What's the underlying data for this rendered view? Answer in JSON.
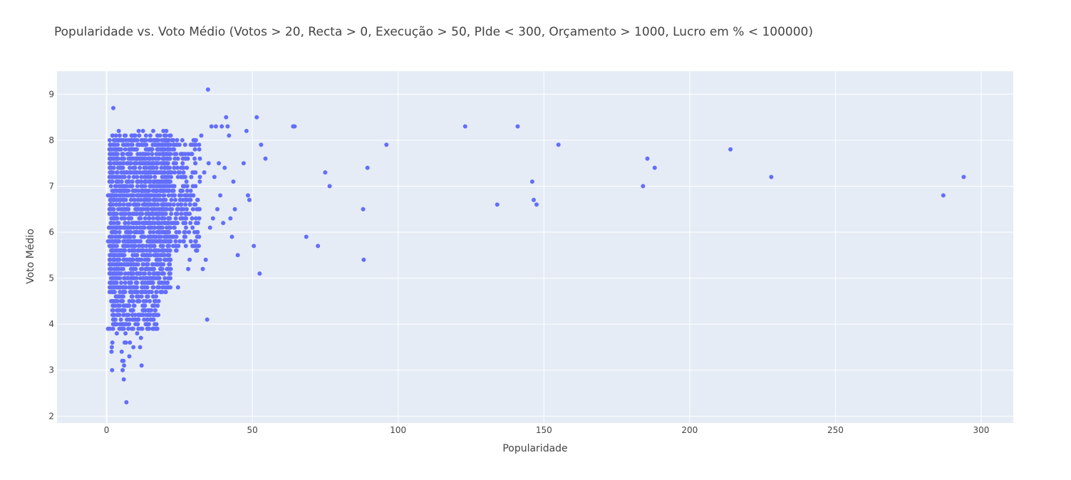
{
  "chart_data": {
    "type": "scatter",
    "title": "Popularidade vs. Voto Médio (Votos > 20, Recta > 0, Execução > 50, PIde < 300, Orçamento > 1000, Lucro em % < 100000)",
    "xlabel": "Popularidade",
    "ylabel": "Voto Médio",
    "xlim": [
      -17,
      311
    ],
    "ylim": [
      1.85,
      9.5
    ],
    "xticks": [
      0,
      50,
      100,
      150,
      200,
      250,
      300
    ],
    "yticks": [
      2,
      3,
      4,
      5,
      6,
      7,
      8,
      9
    ],
    "grid": true,
    "legend": "none",
    "colors": {
      "marker": "#636efa",
      "plot_bg": "#e5ecf6",
      "grid": "#ffffff",
      "text": "#444444"
    },
    "series": [
      {
        "points": [
          [
            0.5,
            3.9
          ],
          [
            1.2,
            3.9
          ],
          [
            0.5,
            5.8
          ],
          [
            0.5,
            6.8
          ],
          [
            0.8,
            6.1
          ],
          [
            1.0,
            7.1
          ],
          [
            1.3,
            6.5
          ],
          [
            1.5,
            4.7
          ],
          [
            1.6,
            4.5
          ],
          [
            1.7,
            3.4
          ],
          [
            1.8,
            3.5
          ],
          [
            1.9,
            3.0
          ],
          [
            2.0,
            3.6
          ],
          [
            2.0,
            4.3
          ],
          [
            2.0,
            8.1
          ],
          [
            2.2,
            5.3
          ],
          [
            2.3,
            8.7
          ],
          [
            2.5,
            8.0
          ],
          [
            2.8,
            4.1
          ],
          [
            3.2,
            4.6
          ],
          [
            3.5,
            3.8
          ],
          [
            3.7,
            4.2
          ],
          [
            3.8,
            7.9
          ],
          [
            4.0,
            4.4
          ],
          [
            4.2,
            8.2
          ],
          [
            4.5,
            8.1
          ],
          [
            4.8,
            4.0
          ],
          [
            5.0,
            8.0
          ],
          [
            5.2,
            3.4
          ],
          [
            5.4,
            3.2
          ],
          [
            5.5,
            3.0
          ],
          [
            5.6,
            3.9
          ],
          [
            5.8,
            3.2
          ],
          [
            5.9,
            2.8
          ],
          [
            6.0,
            3.1
          ],
          [
            6.2,
            3.6
          ],
          [
            6.5,
            3.8
          ],
          [
            6.6,
            3.6
          ],
          [
            6.8,
            2.3
          ],
          [
            7.0,
            4.0
          ],
          [
            7.5,
            3.9
          ],
          [
            7.8,
            3.3
          ],
          [
            8.0,
            3.6
          ],
          [
            8.5,
            8.0
          ],
          [
            9.0,
            4.1
          ],
          [
            9.2,
            3.5
          ],
          [
            9.8,
            8.1
          ],
          [
            10.5,
            3.8
          ],
          [
            11.0,
            8.2
          ],
          [
            11.2,
            8.1
          ],
          [
            11.5,
            3.5
          ],
          [
            11.8,
            3.7
          ],
          [
            12.0,
            3.1
          ],
          [
            12.2,
            3.9
          ],
          [
            12.5,
            8.2
          ],
          [
            13.5,
            4.2
          ],
          [
            14.0,
            4.1
          ],
          [
            15.0,
            8.1
          ],
          [
            16.0,
            8.2
          ],
          [
            16.5,
            4.2
          ],
          [
            17.0,
            4.2
          ],
          [
            17.5,
            4.4
          ],
          [
            18.0,
            4.9
          ],
          [
            19.0,
            4.7
          ],
          [
            19.5,
            8.2
          ],
          [
            20.0,
            5.6
          ],
          [
            20.5,
            8.2
          ],
          [
            21.0,
            5.2
          ],
          [
            21.5,
            7.1
          ],
          [
            22.0,
            5.2
          ],
          [
            22.5,
            8.0
          ],
          [
            23.0,
            7.8
          ],
          [
            24.0,
            5.6
          ],
          [
            24.5,
            4.8
          ],
          [
            25.0,
            7.9
          ],
          [
            25.5,
            6.9
          ],
          [
            26.0,
            8.0
          ],
          [
            26.5,
            5.8
          ],
          [
            27.0,
            7.6
          ],
          [
            27.5,
            6.5
          ],
          [
            28.0,
            5.2
          ],
          [
            28.5,
            5.4
          ],
          [
            29.0,
            7.7
          ],
          [
            29.5,
            7.3
          ],
          [
            30.0,
            8.0
          ],
          [
            30.5,
            6.6
          ],
          [
            31.0,
            5.6
          ],
          [
            31.5,
            6.5
          ],
          [
            32.0,
            7.6
          ],
          [
            32.5,
            8.1
          ],
          [
            33.0,
            5.2
          ],
          [
            33.5,
            7.3
          ],
          [
            34.0,
            5.4
          ],
          [
            34.5,
            4.1
          ],
          [
            34.8,
            9.1
          ],
          [
            35.0,
            7.5
          ],
          [
            35.5,
            6.1
          ],
          [
            36.0,
            8.3
          ],
          [
            36.5,
            6.3
          ],
          [
            37.0,
            7.2
          ],
          [
            37.5,
            8.3
          ],
          [
            38.0,
            6.5
          ],
          [
            38.5,
            7.5
          ],
          [
            39.0,
            6.8
          ],
          [
            39.5,
            8.3
          ],
          [
            40.0,
            6.2
          ],
          [
            40.5,
            7.4
          ],
          [
            41.0,
            8.5
          ],
          [
            41.5,
            8.3
          ],
          [
            42.0,
            8.1
          ],
          [
            42.5,
            6.3
          ],
          [
            43.0,
            5.9
          ],
          [
            43.5,
            7.1
          ],
          [
            44.0,
            6.5
          ],
          [
            45.0,
            5.5
          ],
          [
            47.0,
            7.5
          ],
          [
            48.0,
            8.2
          ],
          [
            48.5,
            6.8
          ],
          [
            49.0,
            6.7
          ],
          [
            50.5,
            5.7
          ],
          [
            51.5,
            8.5
          ],
          [
            52.5,
            5.1
          ],
          [
            53.0,
            7.9
          ],
          [
            54.5,
            7.6
          ],
          [
            64.0,
            8.3
          ],
          [
            64.5,
            8.3
          ],
          [
            68.5,
            5.9
          ],
          [
            72.5,
            5.7
          ],
          [
            75.0,
            7.3
          ],
          [
            76.5,
            7.0
          ],
          [
            88.0,
            6.5
          ],
          [
            88.2,
            5.4
          ],
          [
            89.5,
            7.4
          ],
          [
            96.0,
            7.9
          ],
          [
            123.0,
            8.3
          ],
          [
            134.0,
            6.6
          ],
          [
            141.0,
            8.3
          ],
          [
            146.0,
            7.1
          ],
          [
            146.5,
            6.7
          ],
          [
            147.5,
            6.6
          ],
          [
            155.0,
            7.9
          ],
          [
            184.0,
            7.0
          ],
          [
            185.5,
            7.6
          ],
          [
            188.0,
            7.4
          ],
          [
            214.0,
            7.8
          ],
          [
            228.0,
            7.2
          ],
          [
            287.0,
            6.8
          ],
          [
            294.0,
            7.2
          ]
        ],
        "dense_clusters": [
          {
            "x": [
              1.0,
              22.0
            ],
            "y": [
              4.7,
              8.1
            ],
            "approx_points": 1500
          },
          {
            "x": [
              2.0,
              18.0
            ],
            "y": [
              3.9,
              4.7
            ],
            "approx_points": 180
          },
          {
            "x": [
              19.0,
              32.0
            ],
            "y": [
              5.6,
              8.0
            ],
            "approx_points": 260
          }
        ]
      }
    ]
  }
}
